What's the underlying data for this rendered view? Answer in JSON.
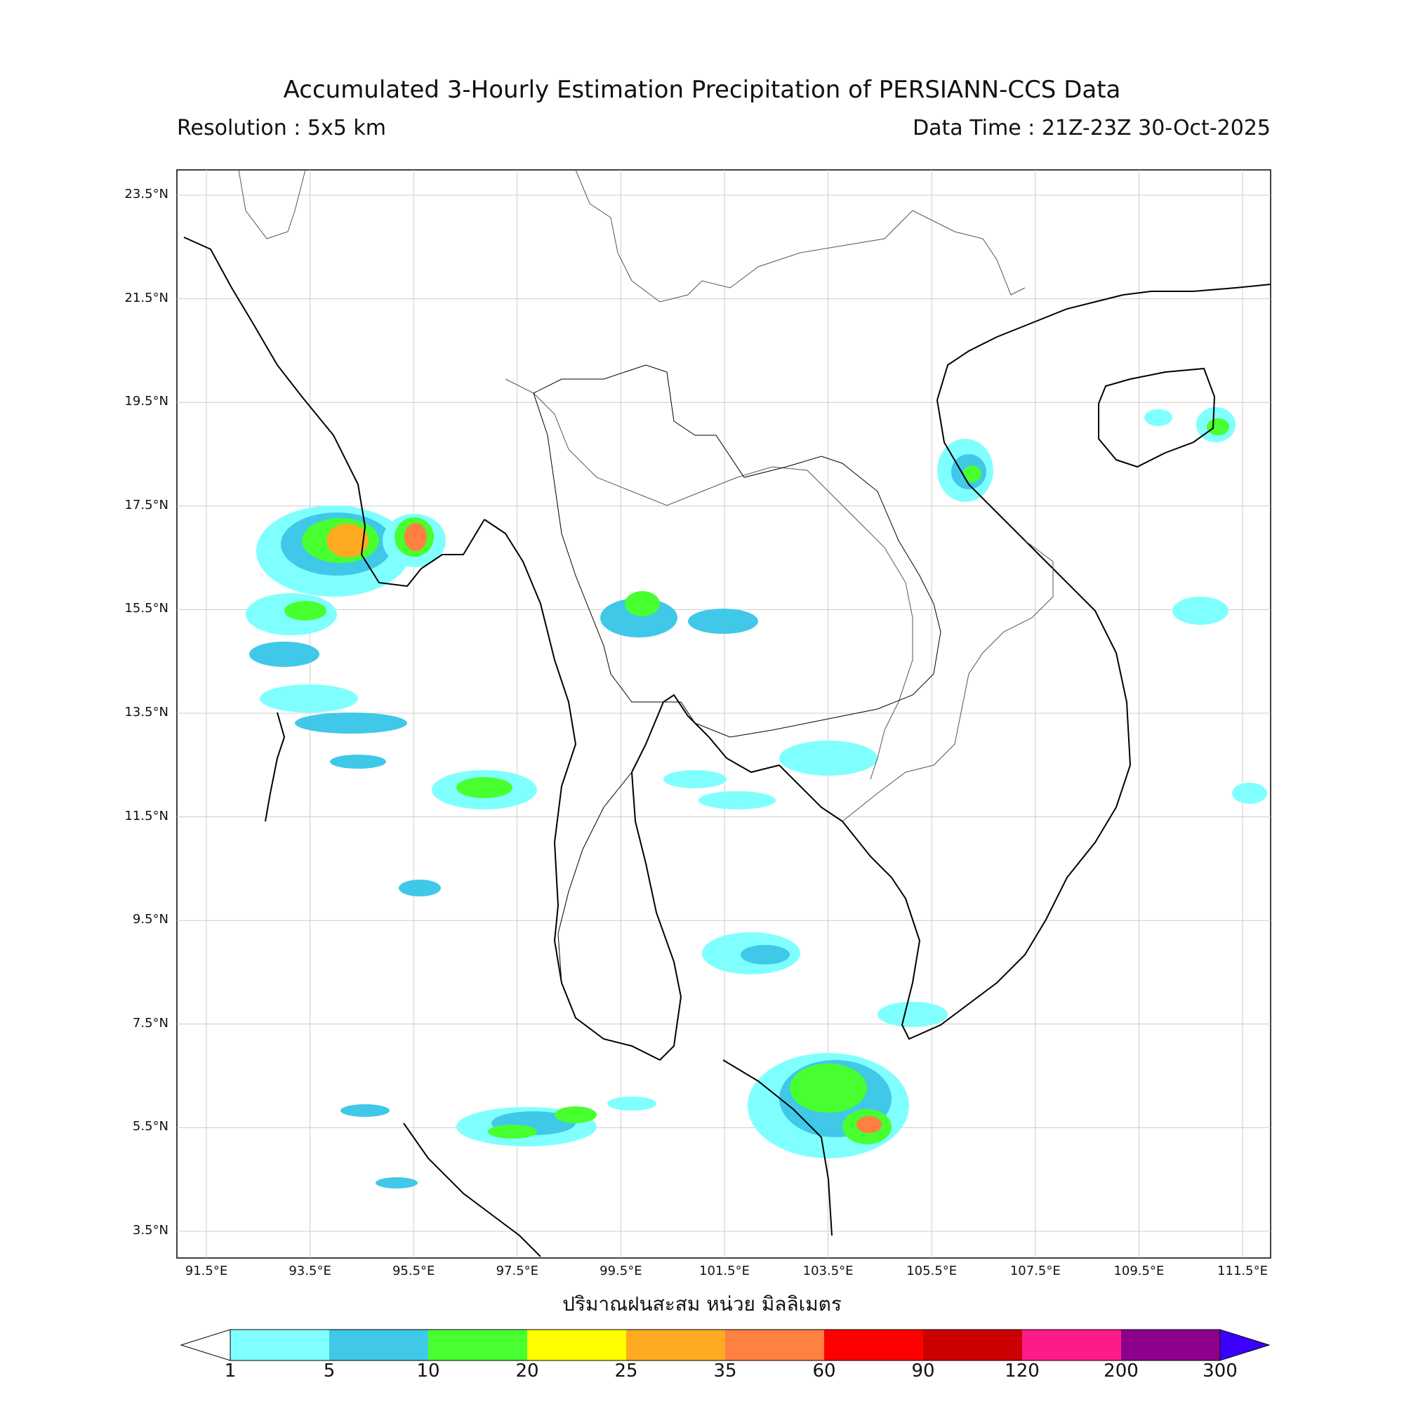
{
  "title": "Accumulated 3-Hourly Estimation Precipitation of PERSIANN-CCS Data",
  "resolution": "Resolution : 5x5 km",
  "data_time": "Data Time : 21Z-23Z 30-Oct-2025",
  "x_axis_label": "ปริมาณฝนสะสม หน่วย มิลลิเมตร",
  "lat_ticks": [
    "23.5°N",
    "21.5°N",
    "19.5°N",
    "17.5°N",
    "15.5°N",
    "13.5°N",
    "11.5°N",
    "9.5°N",
    "7.5°N",
    "5.5°N",
    "3.5°N"
  ],
  "lon_ticks": [
    "91.5°E",
    "93.5°E",
    "95.5°E",
    "97.5°E",
    "99.5°E",
    "101.5°E",
    "103.5°E",
    "105.5°E",
    "107.5°E",
    "109.5°E",
    "111.5°E"
  ],
  "colorbar": {
    "ticks": [
      "1",
      "5",
      "10",
      "20",
      "25",
      "35",
      "60",
      "90",
      "120",
      "200",
      "300"
    ],
    "colors": [
      "#80ffff",
      "#40c8e8",
      "#48ff30",
      "#ffff00",
      "#ffaa20",
      "#ff8040",
      "#ff0000",
      "#cc0000",
      "#ff1a8c",
      "#8c008c",
      "#3c00ff"
    ]
  },
  "map": {
    "lon_range": [
      91,
      112
    ],
    "lat_range": [
      3,
      24
    ]
  }
}
